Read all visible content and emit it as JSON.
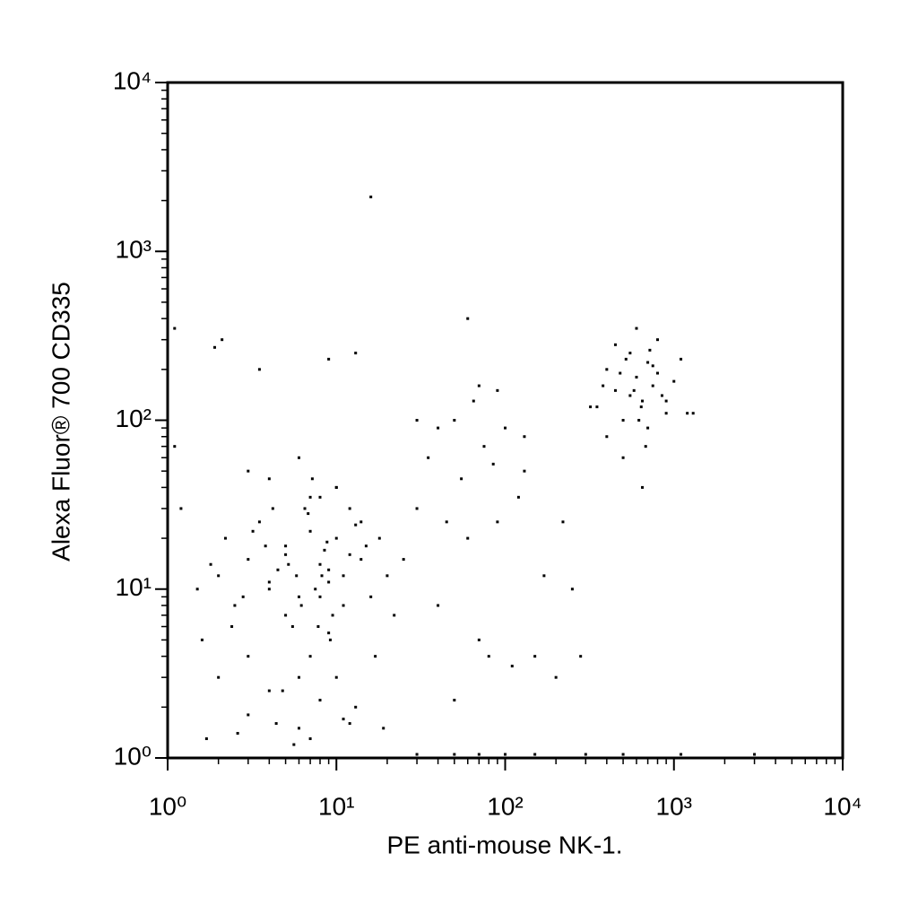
{
  "chart_data": {
    "type": "scatter",
    "x_label": "PE anti-mouse NK-1.",
    "y_label": "Alexa Fluor® 700 CD335",
    "xlog": true,
    "ylog": true,
    "xlim": [
      1,
      10000
    ],
    "ylim": [
      1,
      10000
    ],
    "xticks": [
      {
        "value": 1,
        "label": "10⁰"
      },
      {
        "value": 10,
        "label": "10¹"
      },
      {
        "value": 100,
        "label": "10²"
      },
      {
        "value": 1000,
        "label": "10³"
      },
      {
        "value": 10000,
        "label": "10⁴"
      }
    ],
    "yticks": [
      {
        "value": 1,
        "label": "10⁰"
      },
      {
        "value": 10,
        "label": "10¹"
      },
      {
        "value": 100,
        "label": "10²"
      },
      {
        "value": 1000,
        "label": "10³"
      },
      {
        "value": 10000,
        "label": "10⁴"
      }
    ],
    "minor_ticks": [
      2,
      3,
      4,
      5,
      6,
      7,
      8,
      9,
      20,
      30,
      40,
      50,
      60,
      70,
      80,
      90,
      200,
      300,
      400,
      500,
      600,
      700,
      800,
      900,
      2000,
      3000,
      4000,
      5000,
      6000,
      7000,
      8000,
      9000
    ],
    "color": "#000000",
    "x": [
      2,
      3,
      4,
      5,
      6,
      7,
      8,
      9,
      10,
      12,
      2.5,
      3.5,
      4.5,
      5.5,
      6.5,
      7.5,
      8.5,
      9.5,
      11,
      13,
      1.6,
      2.2,
      3,
      4,
      5,
      6,
      7,
      8,
      9,
      10,
      1.8,
      2.8,
      3.8,
      4.8,
      5.8,
      6.8,
      7.8,
      8.8,
      11,
      14,
      1.5,
      2.4,
      3.2,
      4.2,
      5.2,
      6.2,
      7.2,
      8.2,
      9.2,
      15,
      2,
      3,
      4,
      5,
      6,
      7,
      8,
      10,
      12,
      16,
      3,
      4,
      6,
      8,
      10,
      12,
      14,
      18,
      20,
      22,
      1.7,
      2.6,
      4.4,
      5.6,
      7,
      9,
      11,
      13,
      17,
      19,
      25,
      30,
      35,
      40,
      45,
      50,
      55,
      60,
      65,
      70,
      75,
      80,
      85,
      90,
      100,
      110,
      120,
      130,
      150,
      170,
      200,
      220,
      250,
      280,
      30,
      40,
      50,
      70,
      90,
      130,
      350,
      400,
      450,
      500,
      550,
      600,
      650,
      700,
      750,
      800,
      850,
      900,
      1000,
      1100,
      1200,
      400,
      500,
      600,
      700,
      800,
      450,
      550,
      650,
      750,
      320,
      380,
      620,
      680,
      520,
      580,
      720,
      900,
      480,
      640,
      1300,
      16,
      1.9,
      2.1,
      3.5,
      9,
      13,
      60,
      1.1,
      1.1,
      1.2,
      30,
      50,
      70,
      100,
      150,
      300,
      500,
      1100,
      3000
    ],
    "y": [
      12,
      15,
      10,
      18,
      9,
      22,
      14,
      11,
      20,
      16,
      8,
      25,
      13,
      6,
      30,
      10,
      17,
      7,
      12,
      24,
      5,
      20,
      4,
      11,
      16,
      3,
      35,
      9,
      13,
      40,
      14,
      9,
      18,
      2.5,
      12,
      28,
      6,
      19,
      8,
      15,
      10,
      6,
      22,
      30,
      14,
      8,
      45,
      12,
      5,
      18,
      3,
      1.8,
      2.5,
      7,
      1.5,
      4,
      2.2,
      3,
      1.6,
      9,
      50,
      45,
      60,
      35,
      40,
      30,
      25,
      20,
      12,
      7,
      1.3,
      1.4,
      1.6,
      1.2,
      1.3,
      5.5,
      1.7,
      2,
      4,
      1.5,
      15,
      30,
      60,
      8,
      25,
      100,
      45,
      20,
      130,
      5,
      70,
      4,
      55,
      150,
      90,
      3.5,
      35,
      50,
      4,
      12,
      3,
      25,
      10,
      4,
      100,
      90,
      2.2,
      160,
      25,
      80,
      120,
      200,
      150,
      100,
      250,
      180,
      130,
      220,
      160,
      300,
      140,
      110,
      170,
      230,
      110,
      80,
      60,
      350,
      90,
      190,
      280,
      140,
      40,
      210,
      120,
      160,
      100,
      70,
      230,
      150,
      260,
      130,
      190,
      120,
      110,
      2100,
      270,
      300,
      200,
      230,
      250,
      400,
      350,
      70,
      30,
      1.05,
      1.05,
      1.05,
      1.05,
      1.05,
      1.05,
      1.05,
      1.05,
      1.05
    ]
  }
}
